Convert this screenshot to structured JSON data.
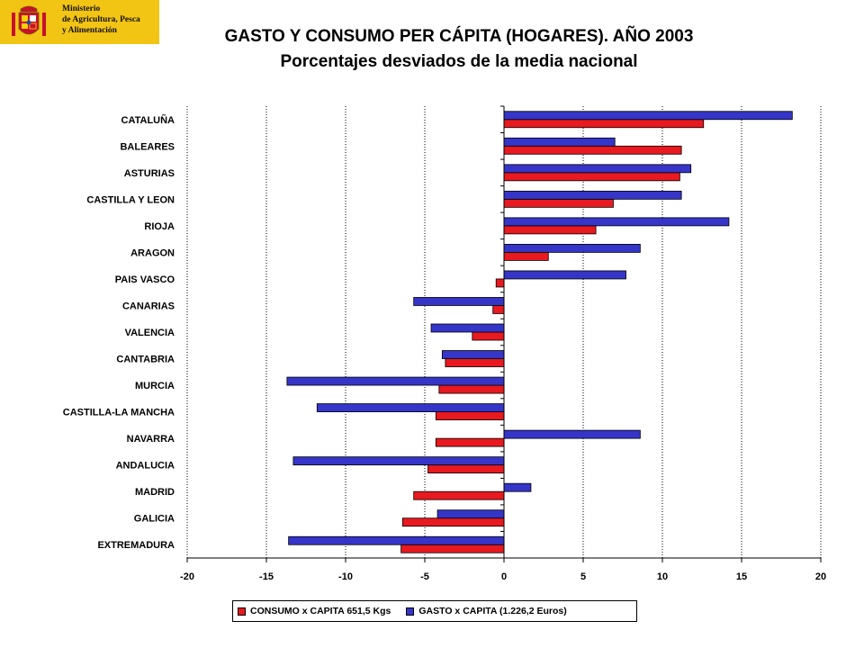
{
  "logo": {
    "line1": "Ministerio",
    "line2": "de Agricultura, Pesca",
    "line3": "y Alimentación"
  },
  "colors": {
    "consumo": "#e8191f",
    "gasto": "#3535c8",
    "logo_bg": "#f2c414"
  },
  "chart_data": {
    "type": "bar",
    "orientation": "horizontal",
    "title": "GASTO Y CONSUMO PER CÁPITA (HOGARES). AÑO 2003",
    "subtitle": "Porcentajes desviados de la media nacional",
    "xlabel": "",
    "ylabel": "",
    "xlim": [
      -20,
      20
    ],
    "xticks": [
      "-20",
      "-15",
      "-10",
      "-5",
      "0",
      "5",
      "10",
      "15",
      "20"
    ],
    "grid": "vertical dotted",
    "legend_position": "bottom",
    "categories": [
      "CATALUÑA",
      "BALEARES",
      "ASTURIAS",
      "CASTILLA  Y LEON",
      "RIOJA",
      "ARAGON",
      "PAIS VASCO",
      "CANARIAS",
      "VALENCIA",
      "CANTABRIA",
      "MURCIA",
      "CASTILLA-LA  MANCHA",
      "NAVARRA",
      "ANDALUCIA",
      "MADRID",
      "GALICIA",
      "EXTREMADURA"
    ],
    "series": [
      {
        "name": "CONSUMO x CAPITA  651,5 Kgs",
        "color": "#e8191f",
        "values": [
          12.6,
          11.2,
          11.1,
          6.9,
          5.8,
          2.8,
          -0.5,
          -0.7,
          -2.0,
          -3.7,
          -4.1,
          -4.3,
          -4.3,
          -4.8,
          -5.7,
          -6.4,
          -6.5
        ]
      },
      {
        "name": "GASTO  x CAPITA (1.226,2 Euros)",
        "color": "#3535c8",
        "values": [
          18.2,
          7.0,
          11.8,
          11.2,
          14.2,
          8.6,
          7.7,
          -5.7,
          -4.6,
          -3.9,
          -13.7,
          -11.8,
          8.6,
          -13.3,
          1.7,
          -4.2,
          -13.6
        ]
      }
    ]
  }
}
